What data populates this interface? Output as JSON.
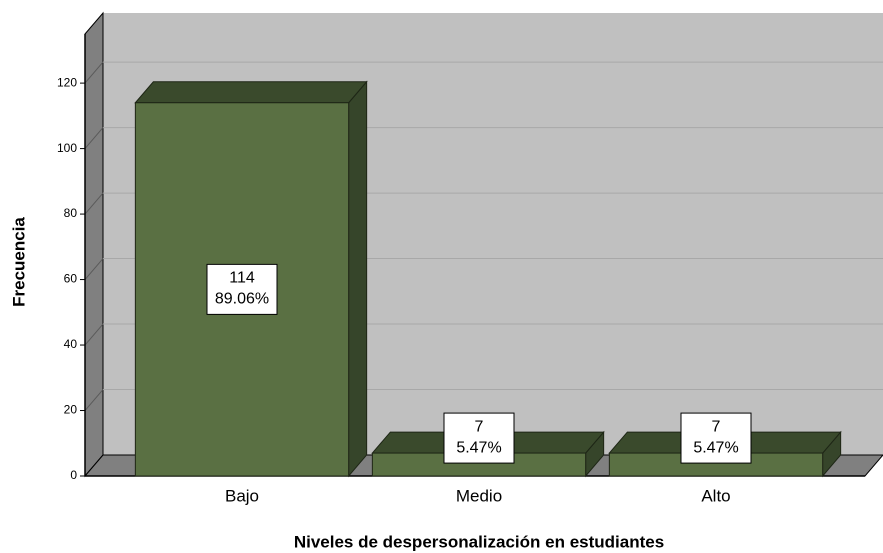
{
  "chart_data": {
    "type": "bar",
    "x_label": "Niveles de despersonalización en estudiantes",
    "y_label": "Frecuencia",
    "categories": [
      "Bajo",
      "Medio",
      "Alto"
    ],
    "values": [
      114,
      7,
      7
    ],
    "percent_labels": [
      "89.06%",
      "5.47%",
      "5.47%"
    ],
    "color": "#5a7043",
    "ylim": [
      0,
      135
    ],
    "yticks": [
      0,
      20,
      40,
      60,
      80,
      100,
      120
    ],
    "grid": true,
    "three_d": true
  }
}
